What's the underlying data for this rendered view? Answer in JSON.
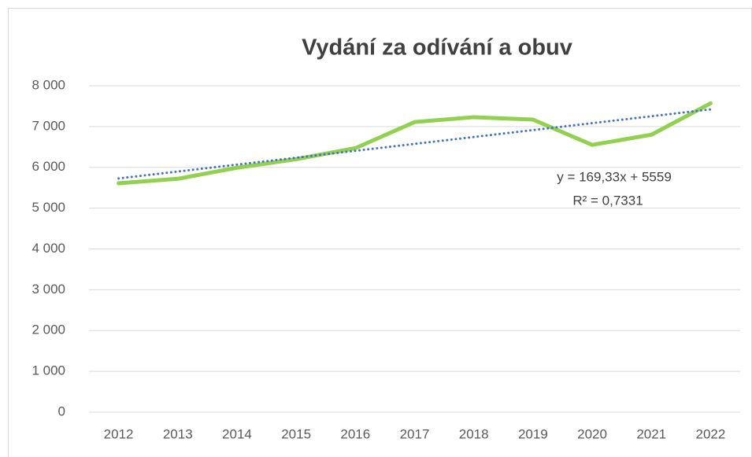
{
  "chart_data": {
    "type": "line",
    "title": "Vydání za odívání a obuv",
    "categories": [
      "2012",
      "2013",
      "2014",
      "2015",
      "2016",
      "2017",
      "2018",
      "2019",
      "2020",
      "2021",
      "2022"
    ],
    "series": [
      {
        "color": "#92d050",
        "values": [
          5610,
          5720,
          5990,
          6200,
          6470,
          7110,
          7230,
          7170,
          6550,
          6800,
          7570
        ]
      }
    ],
    "trendline": {
      "color": "#4472c4",
      "values": [
        5728.33,
        5897.66,
        6066.99,
        6236.32,
        6405.65,
        6574.98,
        6744.31,
        6913.64,
        7082.97,
        7252.3,
        7421.63
      ]
    },
    "annotations": [
      "y = 169,33x + 5559",
      "R² = 0,7331"
    ],
    "ylim": [
      0,
      8000
    ],
    "yticks": [
      0,
      {
        "value": 1000,
        "label": "1 000"
      },
      {
        "value": 2000,
        "label": "2 000"
      },
      {
        "value": 3000,
        "label": "3 000"
      },
      {
        "value": 4000,
        "label": "4 000"
      },
      {
        "value": 5000,
        "label": "5 000"
      },
      {
        "value": 6000,
        "label": "6 000"
      },
      {
        "value": 7000,
        "label": "7 000"
      },
      {
        "value": 8000,
        "label": "8 000"
      }
    ],
    "grid": true
  }
}
